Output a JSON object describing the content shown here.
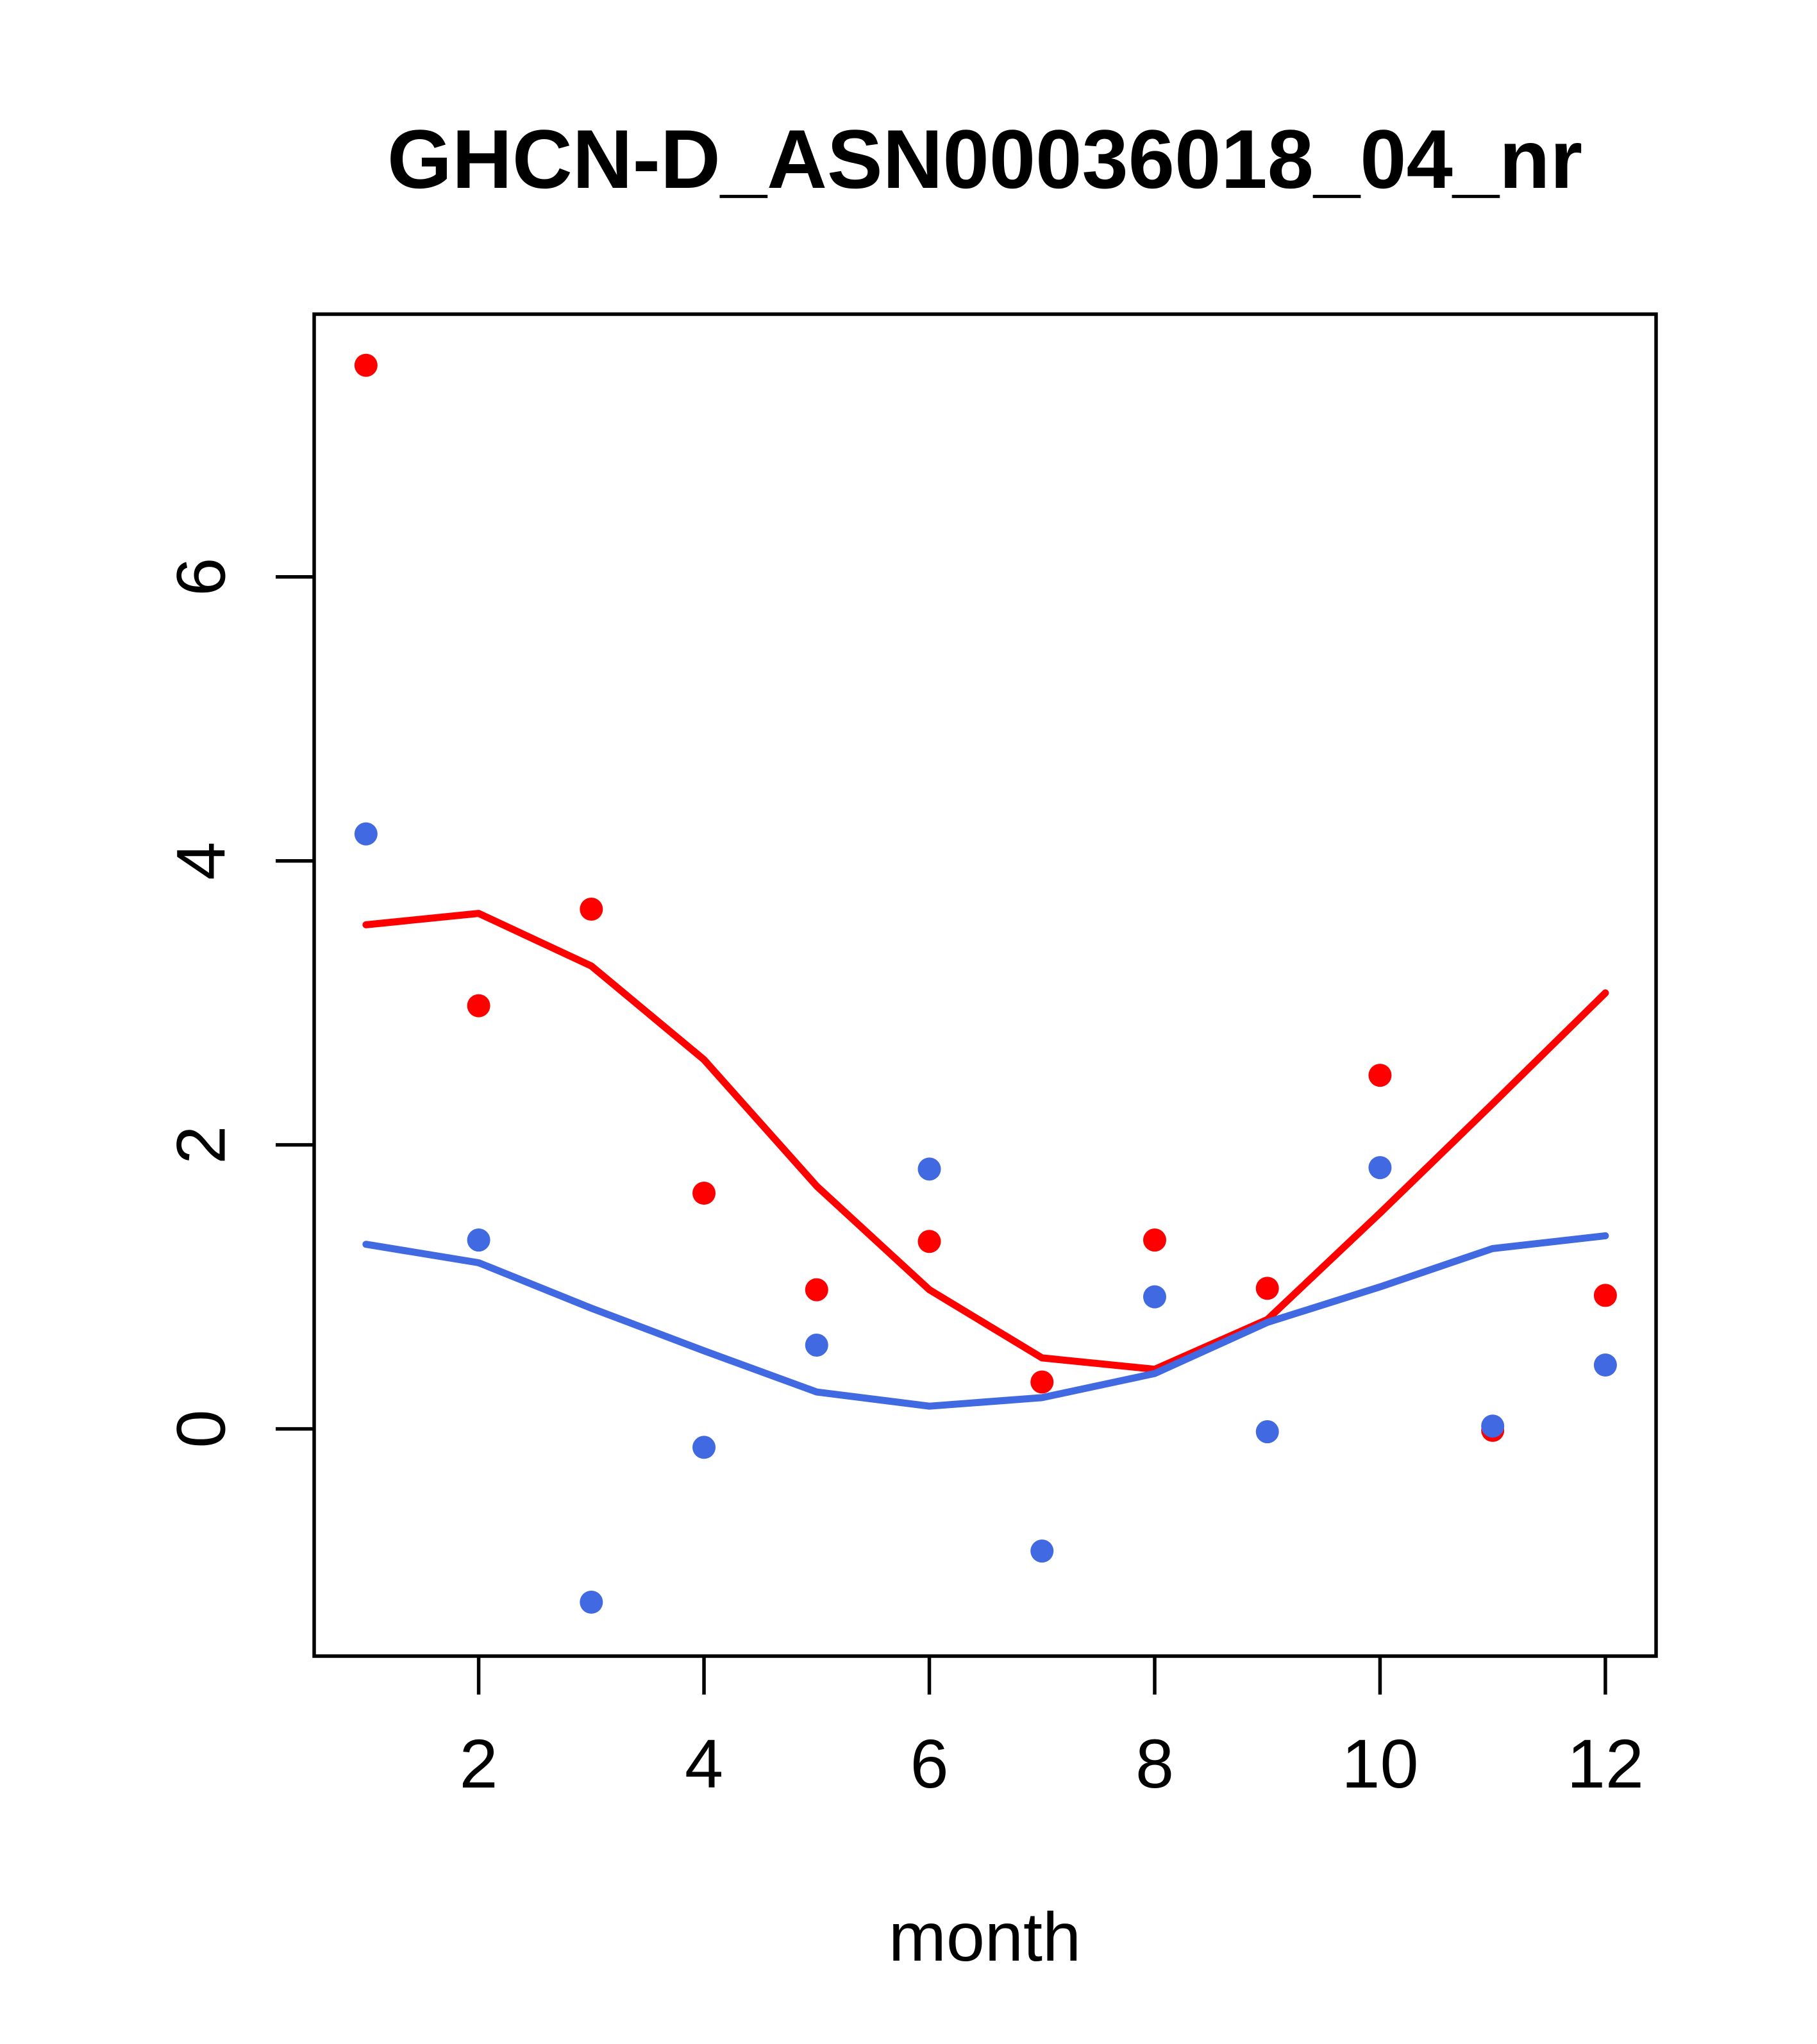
{
  "chart_data": {
    "type": "scatter",
    "title": "GHCN-D_ASN00036018_04_nr",
    "xlabel": "month",
    "ylabel": "",
    "x": [
      1,
      2,
      3,
      4,
      5,
      6,
      7,
      8,
      9,
      10,
      11,
      12
    ],
    "x_ticks": [
      2,
      4,
      6,
      8,
      10,
      12
    ],
    "y_ticks": [
      0,
      2,
      4,
      6
    ],
    "xlim": [
      0.54,
      12.45
    ],
    "ylim": [
      -1.6,
      7.85
    ],
    "grid": false,
    "legend_position": "none",
    "colors": {
      "red": "#FF0000",
      "blue": "#4169E1",
      "axis": "#000000"
    },
    "series": [
      {
        "name": "red-points",
        "kind": "scatter",
        "color": "#FF0000",
        "values": [
          7.49,
          2.98,
          3.66,
          1.66,
          0.98,
          1.32,
          0.33,
          1.33,
          0.99,
          2.49,
          -0.01,
          0.94
        ]
      },
      {
        "name": "blue-points",
        "kind": "scatter",
        "color": "#4169E1",
        "values": [
          4.19,
          1.33,
          -1.22,
          -0.13,
          0.59,
          1.83,
          -0.86,
          0.93,
          -0.02,
          1.84,
          0.02,
          0.45
        ]
      },
      {
        "name": "red-smooth-line",
        "kind": "line",
        "color": "#FF0000",
        "values": [
          3.55,
          3.63,
          3.26,
          2.6,
          1.71,
          0.98,
          0.5,
          0.42,
          0.77,
          1.52,
          2.29,
          3.07
        ]
      },
      {
        "name": "blue-smooth-line",
        "kind": "line",
        "color": "#4169E1",
        "values": [
          1.3,
          1.17,
          0.85,
          0.55,
          0.26,
          0.16,
          0.22,
          0.39,
          0.75,
          1.0,
          1.27,
          1.36
        ]
      }
    ]
  }
}
